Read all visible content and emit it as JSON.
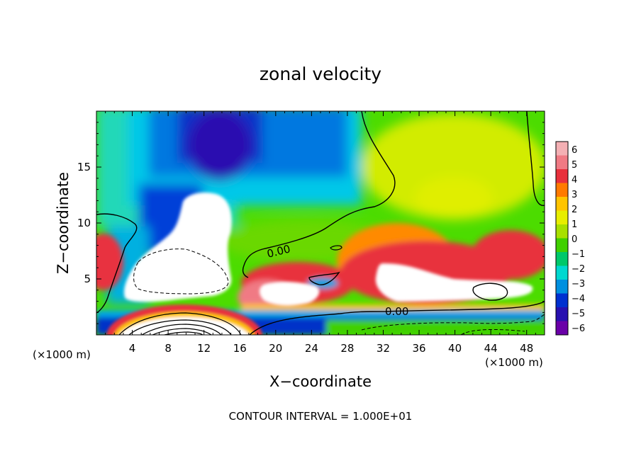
{
  "chart_data": {
    "type": "heatmap",
    "title": "zonal velocity",
    "xlabel": "X−coordinate",
    "ylabel": "Z−coordinate",
    "x_unit": "(×1000 m)",
    "z_unit": "(×1000 m)",
    "footer": "CONTOUR INTERVAL = 1.000E+01",
    "xlim": [
      0,
      50
    ],
    "ylim": [
      0,
      20
    ],
    "x_ticks": [
      4,
      8,
      12,
      16,
      20,
      24,
      28,
      32,
      36,
      40,
      44,
      48
    ],
    "y_ticks": [
      5,
      10,
      15
    ],
    "colorbar": {
      "ticks": [
        6,
        5,
        4,
        3,
        2,
        1,
        0,
        -1,
        -2,
        -3,
        -4,
        -5,
        -6
      ],
      "colors": [
        "#f4b0b4",
        "#f07a84",
        "#e8303c",
        "#ff7a00",
        "#ffc400",
        "#e8ee00",
        "#a8e000",
        "#40d000",
        "#00c86a",
        "#00d8d0",
        "#0090e0",
        "#0030d0",
        "#2810b0",
        "#6a00a8"
      ]
    },
    "contour_labels": [
      "0.00",
      "0.00"
    ],
    "regions": [
      {
        "name": "strong negative jet aloft (< -6)",
        "value": -6.5,
        "x": [
          9,
          16
        ],
        "z": [
          12,
          20
        ]
      },
      {
        "name": "saturated negative region (< -6)",
        "value": -7,
        "x": [
          3,
          15
        ],
        "z": [
          3.5,
          12.5
        ]
      },
      {
        "name": "saturated positive region (> 6)",
        "value": 7,
        "x": [
          18,
          27
        ],
        "z": [
          2.7,
          4.6
        ]
      },
      {
        "name": "saturated positive region (> 6)",
        "value": 7,
        "x": [
          32,
          49
        ],
        "z": [
          3.2,
          6.5
        ]
      },
      {
        "name": "positive maximum near surface",
        "value": 7,
        "x": [
          3,
          16
        ],
        "z": [
          0,
          2.5
        ]
      },
      {
        "name": "weak positive region aloft",
        "value": 1.5,
        "x": [
          32,
          50
        ],
        "z": [
          9,
          20
        ]
      }
    ],
    "grid": false,
    "legend": "right"
  }
}
